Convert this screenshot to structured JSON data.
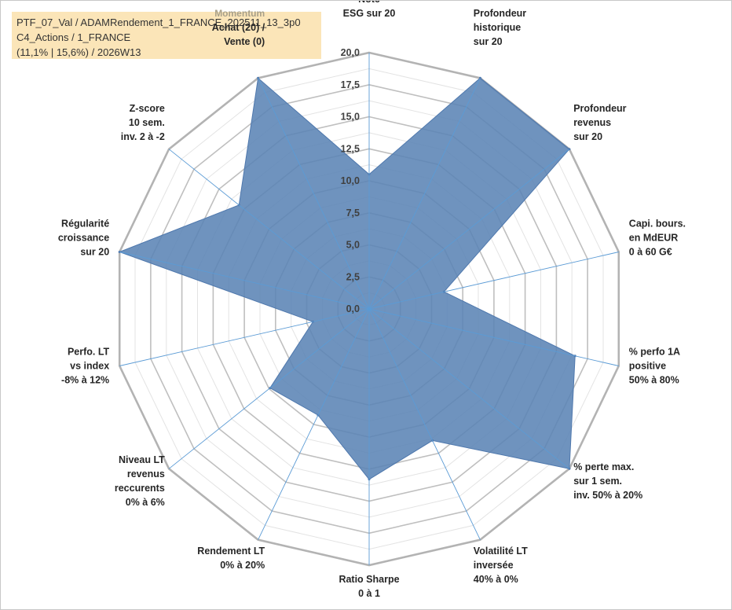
{
  "info_box": {
    "line1": "PTF_07_Val / ADAMRendement_1_FRANCE_202511_13_3p0",
    "line2": "C4_Actions / 1_FRANCE",
    "line3": "(11,1% | 15,6%) / 2026W13"
  },
  "chart_data": {
    "type": "radar",
    "rmin": 0,
    "rmax": 20,
    "ticks": [
      "0,0",
      "2,5",
      "5,0",
      "7,5",
      "10,0",
      "12,5",
      "15,0",
      "17,5",
      "20,0"
    ],
    "categories": [
      {
        "label_lines": [
          "Note",
          "ESG sur 20"
        ]
      },
      {
        "label_lines": [
          "Profondeur",
          "historique",
          "sur 20"
        ]
      },
      {
        "label_lines": [
          "Profondeur",
          "revenus",
          "sur 20"
        ]
      },
      {
        "label_lines": [
          "Capi. bours.",
          "en MdEUR",
          "0 à 60 G€"
        ]
      },
      {
        "label_lines": [
          "% perfo 1A",
          "positive",
          "50% à 80%"
        ]
      },
      {
        "label_lines": [
          "% perte max.",
          "sur 1 sem.",
          "inv. 50% à 20%"
        ]
      },
      {
        "label_lines": [
          "Volatilité LT",
          "inversée",
          "40% à 0%"
        ]
      },
      {
        "label_lines": [
          "Ratio Sharpe",
          "0 à 1"
        ]
      },
      {
        "label_lines": [
          "Rendement LT",
          "0% à 20%"
        ]
      },
      {
        "label_lines": [
          "Niveau LT",
          "revenus",
          "reccurents",
          "0% à 6%"
        ]
      },
      {
        "label_lines": [
          "Perfo. LT",
          "vs index",
          "-8% à 12%"
        ]
      },
      {
        "label_lines": [
          "Régularité",
          "croissance",
          "sur 20"
        ]
      },
      {
        "label_lines": [
          "Z-score",
          "10 sem.",
          "inv. 2 à -2"
        ]
      },
      {
        "label_prefix": "Momentum",
        "label_lines": [
          "Achat (20) /",
          "Vente (0)"
        ]
      }
    ],
    "series": [
      {
        "values": [
          10.5,
          20,
          20,
          6.0,
          16.5,
          20,
          11.4,
          13.3,
          9.2,
          9.9,
          4.5,
          20,
          13.0,
          20
        ]
      }
    ],
    "colors": {
      "fill": "#5b84b5",
      "stroke": "#4f78ad",
      "grid": "#bfbfbf",
      "axis": "#5b9bd5"
    },
    "grid": true
  }
}
